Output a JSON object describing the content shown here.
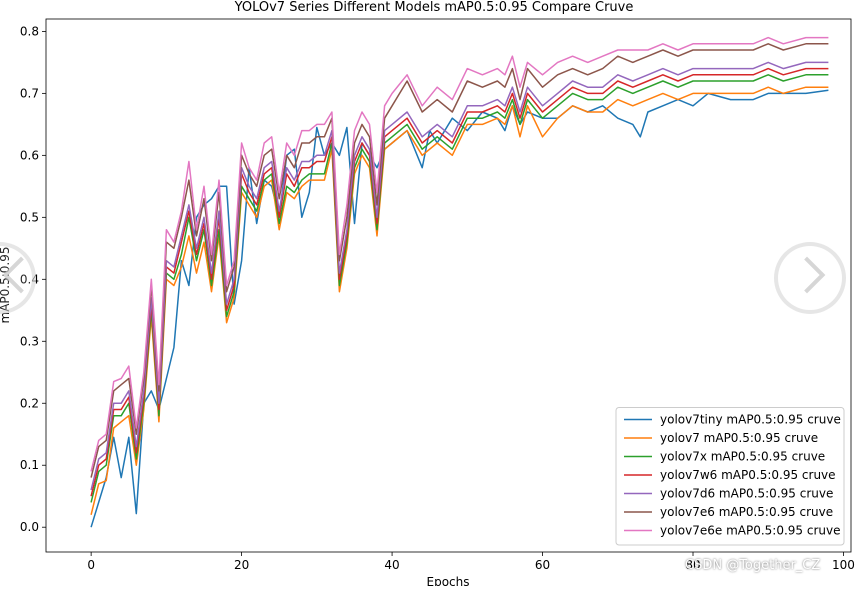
{
  "chart_data": {
    "type": "line",
    "title": "YOLOv7 Series Different Models mAP0.5:0.95 Compare Cruve",
    "xlabel": "Epochs",
    "ylabel": "mAP0.5:0.95",
    "xlim": [
      -6,
      101
    ],
    "ylim": [
      -0.04,
      0.82
    ],
    "xticks": [
      0,
      20,
      40,
      60,
      80,
      100
    ],
    "yticks": [
      0.0,
      0.1,
      0.2,
      0.3,
      0.4,
      0.5,
      0.6,
      0.7,
      0.8
    ],
    "legend_position": "lower-right",
    "grid": false,
    "series": [
      {
        "name": "yolov7tiny mAP0.5:0.95 cruve",
        "color": "#1f77b4",
        "x": [
          0,
          2,
          3,
          4,
          5,
          6,
          7,
          8,
          9,
          10,
          11,
          12,
          13,
          14,
          15,
          16,
          17,
          18,
          19,
          20,
          21,
          22,
          23,
          24,
          25,
          26,
          27,
          28,
          29,
          30,
          31,
          32,
          33,
          34,
          35,
          36,
          37,
          38,
          39,
          40,
          42,
          44,
          45,
          46,
          48,
          50,
          52,
          54,
          55,
          56,
          57,
          58,
          60,
          62,
          64,
          66,
          68,
          70,
          72,
          73,
          74,
          76,
          78,
          80,
          82,
          85,
          88,
          90,
          92,
          95,
          98
        ],
        "y": [
          0.0,
          0.08,
          0.145,
          0.08,
          0.145,
          0.022,
          0.2,
          0.22,
          0.19,
          0.24,
          0.29,
          0.43,
          0.39,
          0.5,
          0.52,
          0.53,
          0.55,
          0.55,
          0.36,
          0.43,
          0.58,
          0.49,
          0.56,
          0.55,
          0.5,
          0.6,
          0.61,
          0.5,
          0.54,
          0.645,
          0.6,
          0.62,
          0.6,
          0.645,
          0.49,
          0.62,
          0.6,
          0.58,
          0.61,
          0.62,
          0.64,
          0.58,
          0.64,
          0.62,
          0.66,
          0.64,
          0.67,
          0.66,
          0.64,
          0.68,
          0.65,
          0.67,
          0.66,
          0.66,
          0.68,
          0.67,
          0.68,
          0.66,
          0.65,
          0.63,
          0.67,
          0.68,
          0.69,
          0.68,
          0.7,
          0.69,
          0.69,
          0.7,
          0.7,
          0.7,
          0.705
        ]
      },
      {
        "name": "yolov7 mAP0.5:0.95 cruve",
        "color": "#ff7f0e",
        "x": [
          0,
          1,
          2,
          3,
          4,
          5,
          6,
          7,
          8,
          9,
          10,
          11,
          12,
          13,
          14,
          15,
          16,
          17,
          18,
          19,
          20,
          21,
          22,
          23,
          24,
          25,
          26,
          27,
          28,
          29,
          30,
          31,
          32,
          33,
          34,
          35,
          36,
          37,
          38,
          39,
          40,
          42,
          44,
          46,
          48,
          50,
          52,
          54,
          55,
          56,
          57,
          58,
          60,
          62,
          64,
          66,
          68,
          70,
          72,
          74,
          76,
          78,
          80,
          82,
          85,
          88,
          90,
          92,
          95,
          98
        ],
        "y": [
          0.02,
          0.07,
          0.075,
          0.16,
          0.17,
          0.18,
          0.1,
          0.19,
          0.34,
          0.17,
          0.4,
          0.39,
          0.42,
          0.47,
          0.41,
          0.46,
          0.38,
          0.47,
          0.33,
          0.37,
          0.54,
          0.52,
          0.5,
          0.55,
          0.56,
          0.48,
          0.54,
          0.53,
          0.55,
          0.56,
          0.56,
          0.56,
          0.61,
          0.38,
          0.45,
          0.57,
          0.6,
          0.58,
          0.47,
          0.61,
          0.62,
          0.64,
          0.6,
          0.62,
          0.6,
          0.65,
          0.65,
          0.66,
          0.65,
          0.68,
          0.63,
          0.68,
          0.63,
          0.66,
          0.68,
          0.67,
          0.67,
          0.69,
          0.68,
          0.69,
          0.7,
          0.69,
          0.7,
          0.7,
          0.7,
          0.7,
          0.71,
          0.7,
          0.71,
          0.71
        ]
      },
      {
        "name": "yolov7x mAP0.5:0.95 cruve",
        "color": "#2ca02c",
        "x": [
          0,
          1,
          2,
          3,
          4,
          5,
          6,
          7,
          8,
          9,
          10,
          11,
          12,
          13,
          14,
          15,
          16,
          17,
          18,
          19,
          20,
          21,
          22,
          23,
          24,
          25,
          26,
          27,
          28,
          29,
          30,
          31,
          32,
          33,
          34,
          35,
          36,
          37,
          38,
          39,
          40,
          42,
          44,
          46,
          48,
          50,
          52,
          54,
          55,
          56,
          57,
          58,
          60,
          62,
          64,
          66,
          68,
          70,
          72,
          74,
          76,
          78,
          80,
          82,
          85,
          88,
          90,
          92,
          95,
          98
        ],
        "y": [
          0.04,
          0.09,
          0.1,
          0.18,
          0.18,
          0.2,
          0.11,
          0.2,
          0.35,
          0.18,
          0.41,
          0.4,
          0.44,
          0.5,
          0.43,
          0.48,
          0.39,
          0.48,
          0.34,
          0.38,
          0.55,
          0.53,
          0.51,
          0.56,
          0.57,
          0.49,
          0.55,
          0.54,
          0.56,
          0.57,
          0.57,
          0.57,
          0.62,
          0.39,
          0.46,
          0.58,
          0.61,
          0.59,
          0.48,
          0.62,
          0.63,
          0.65,
          0.61,
          0.63,
          0.61,
          0.66,
          0.66,
          0.67,
          0.66,
          0.69,
          0.65,
          0.69,
          0.66,
          0.68,
          0.7,
          0.69,
          0.69,
          0.71,
          0.7,
          0.71,
          0.72,
          0.71,
          0.72,
          0.72,
          0.72,
          0.72,
          0.73,
          0.72,
          0.73,
          0.73
        ]
      },
      {
        "name": "yolov7w6 mAP0.5:0.95 cruve",
        "color": "#d62728",
        "x": [
          0,
          1,
          2,
          3,
          4,
          5,
          6,
          7,
          8,
          9,
          10,
          11,
          12,
          13,
          14,
          15,
          16,
          17,
          18,
          19,
          20,
          21,
          22,
          23,
          24,
          25,
          26,
          27,
          28,
          29,
          30,
          31,
          32,
          33,
          34,
          35,
          36,
          37,
          38,
          39,
          40,
          42,
          44,
          46,
          48,
          50,
          52,
          54,
          55,
          56,
          57,
          58,
          60,
          62,
          64,
          66,
          68,
          70,
          72,
          74,
          76,
          78,
          80,
          82,
          85,
          88,
          90,
          92,
          95,
          98
        ],
        "y": [
          0.05,
          0.1,
          0.11,
          0.19,
          0.19,
          0.21,
          0.12,
          0.21,
          0.36,
          0.19,
          0.42,
          0.41,
          0.46,
          0.51,
          0.44,
          0.49,
          0.4,
          0.5,
          0.35,
          0.39,
          0.57,
          0.54,
          0.52,
          0.57,
          0.58,
          0.5,
          0.57,
          0.55,
          0.58,
          0.58,
          0.59,
          0.59,
          0.63,
          0.4,
          0.47,
          0.59,
          0.62,
          0.6,
          0.49,
          0.63,
          0.64,
          0.66,
          0.62,
          0.64,
          0.62,
          0.67,
          0.67,
          0.68,
          0.67,
          0.7,
          0.66,
          0.7,
          0.67,
          0.69,
          0.71,
          0.7,
          0.7,
          0.72,
          0.71,
          0.72,
          0.73,
          0.72,
          0.73,
          0.73,
          0.73,
          0.73,
          0.74,
          0.73,
          0.74,
          0.74
        ]
      },
      {
        "name": "yolov7d6 mAP0.5:0.95 cruve",
        "color": "#9467bd",
        "x": [
          0,
          1,
          2,
          3,
          4,
          5,
          6,
          7,
          8,
          9,
          10,
          11,
          12,
          13,
          14,
          15,
          16,
          17,
          18,
          19,
          20,
          21,
          22,
          23,
          24,
          25,
          26,
          27,
          28,
          29,
          30,
          31,
          32,
          33,
          34,
          35,
          36,
          37,
          38,
          39,
          40,
          42,
          44,
          46,
          48,
          50,
          52,
          54,
          55,
          56,
          57,
          58,
          60,
          62,
          64,
          66,
          68,
          70,
          72,
          74,
          76,
          78,
          80,
          82,
          85,
          88,
          90,
          92,
          95,
          98
        ],
        "y": [
          0.06,
          0.11,
          0.12,
          0.2,
          0.2,
          0.22,
          0.13,
          0.22,
          0.37,
          0.2,
          0.43,
          0.42,
          0.47,
          0.52,
          0.45,
          0.5,
          0.41,
          0.51,
          0.36,
          0.4,
          0.58,
          0.55,
          0.53,
          0.58,
          0.59,
          0.51,
          0.58,
          0.56,
          0.59,
          0.59,
          0.6,
          0.6,
          0.64,
          0.41,
          0.48,
          0.6,
          0.63,
          0.61,
          0.5,
          0.64,
          0.65,
          0.67,
          0.63,
          0.65,
          0.63,
          0.68,
          0.68,
          0.69,
          0.68,
          0.71,
          0.67,
          0.71,
          0.68,
          0.7,
          0.72,
          0.71,
          0.71,
          0.73,
          0.72,
          0.73,
          0.74,
          0.73,
          0.74,
          0.74,
          0.74,
          0.74,
          0.75,
          0.74,
          0.75,
          0.75
        ]
      },
      {
        "name": "yolov7e6 mAP0.5:0.95 cruve",
        "color": "#8c564b",
        "x": [
          0,
          1,
          2,
          3,
          4,
          5,
          6,
          7,
          8,
          9,
          10,
          11,
          12,
          13,
          14,
          15,
          16,
          17,
          18,
          19,
          20,
          21,
          22,
          23,
          24,
          25,
          26,
          27,
          28,
          29,
          30,
          31,
          32,
          33,
          34,
          35,
          36,
          37,
          38,
          39,
          40,
          42,
          44,
          46,
          48,
          50,
          52,
          54,
          55,
          56,
          57,
          58,
          60,
          62,
          64,
          66,
          68,
          70,
          72,
          74,
          76,
          78,
          80,
          82,
          85,
          88,
          90,
          92,
          95,
          98
        ],
        "y": [
          0.08,
          0.13,
          0.14,
          0.22,
          0.23,
          0.24,
          0.15,
          0.24,
          0.39,
          0.22,
          0.46,
          0.45,
          0.5,
          0.56,
          0.47,
          0.53,
          0.43,
          0.54,
          0.38,
          0.42,
          0.6,
          0.57,
          0.55,
          0.6,
          0.61,
          0.53,
          0.6,
          0.58,
          0.62,
          0.62,
          0.63,
          0.63,
          0.66,
          0.43,
          0.5,
          0.62,
          0.65,
          0.63,
          0.52,
          0.66,
          0.68,
          0.72,
          0.67,
          0.69,
          0.67,
          0.72,
          0.71,
          0.72,
          0.71,
          0.74,
          0.69,
          0.74,
          0.71,
          0.73,
          0.74,
          0.73,
          0.74,
          0.76,
          0.75,
          0.76,
          0.77,
          0.76,
          0.77,
          0.77,
          0.77,
          0.77,
          0.78,
          0.77,
          0.78,
          0.78
        ]
      },
      {
        "name": "yolov7e6e mAP0.5:0.95 cruve",
        "color": "#e377c2",
        "x": [
          0,
          1,
          2,
          3,
          4,
          5,
          6,
          7,
          8,
          9,
          10,
          11,
          12,
          13,
          14,
          15,
          16,
          17,
          18,
          19,
          20,
          21,
          22,
          23,
          24,
          25,
          26,
          27,
          28,
          29,
          30,
          31,
          32,
          33,
          34,
          35,
          36,
          37,
          38,
          39,
          40,
          42,
          44,
          46,
          48,
          50,
          52,
          54,
          55,
          56,
          57,
          58,
          60,
          62,
          64,
          66,
          68,
          70,
          72,
          74,
          76,
          78,
          80,
          82,
          85,
          88,
          90,
          92,
          95,
          98
        ],
        "y": [
          0.09,
          0.14,
          0.15,
          0.235,
          0.24,
          0.26,
          0.16,
          0.25,
          0.4,
          0.23,
          0.48,
          0.46,
          0.51,
          0.59,
          0.48,
          0.55,
          0.44,
          0.56,
          0.39,
          0.43,
          0.62,
          0.58,
          0.56,
          0.62,
          0.63,
          0.54,
          0.62,
          0.6,
          0.64,
          0.64,
          0.65,
          0.65,
          0.67,
          0.44,
          0.52,
          0.64,
          0.67,
          0.65,
          0.54,
          0.68,
          0.7,
          0.73,
          0.68,
          0.71,
          0.69,
          0.74,
          0.73,
          0.74,
          0.73,
          0.76,
          0.71,
          0.75,
          0.73,
          0.75,
          0.76,
          0.75,
          0.76,
          0.77,
          0.77,
          0.77,
          0.78,
          0.77,
          0.78,
          0.78,
          0.78,
          0.78,
          0.79,
          0.78,
          0.79,
          0.79
        ]
      }
    ]
  },
  "watermark": "CSDN @Together_CZ"
}
